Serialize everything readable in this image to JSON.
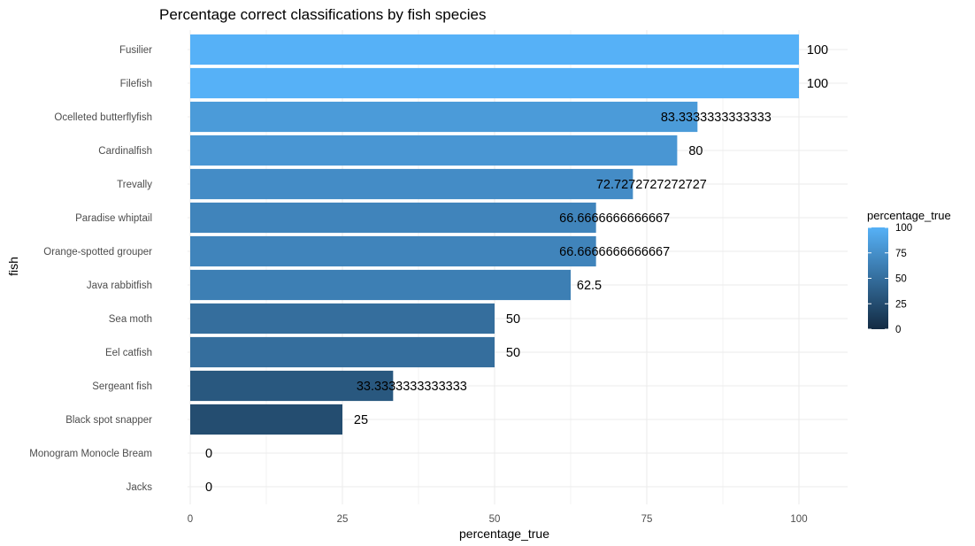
{
  "chart_data": {
    "type": "bar",
    "orientation": "horizontal",
    "title": "Percentage correct classifications by fish species",
    "xlabel": "percentage_true",
    "ylabel": "fish",
    "xlim": [
      0,
      100
    ],
    "x_ticks": [
      "0",
      "25",
      "50",
      "75",
      "100"
    ],
    "grid": true,
    "categories": [
      "Fusilier",
      "Filefish",
      "Ocelleted butterflyfish",
      "Cardinalfish",
      "Trevally",
      "Paradise whiptail",
      "Orange-spotted grouper",
      "Java rabbitfish",
      "Sea moth",
      "Eel catfish",
      "Sergeant fish",
      "Black spot snapper",
      "Monogram Monocle Bream",
      "Jacks"
    ],
    "values": [
      100,
      100,
      83.3333333333333,
      80,
      72.7272727272727,
      66.6666666666667,
      66.6666666666667,
      62.5,
      50,
      50,
      33.3333333333333,
      25,
      0,
      0
    ],
    "data_labels": [
      "100",
      "100",
      "83.3333333333333",
      "80",
      "72.7272727272727",
      "66.6666666666667",
      "66.6666666666667",
      "62.5",
      "50",
      "50",
      "33.3333333333333",
      "25",
      "0",
      "0"
    ],
    "legend": {
      "title": "percentage_true",
      "placement": "right",
      "ticks": [
        "100",
        "75",
        "50",
        "25",
        "0"
      ],
      "color_low": "#132b43",
      "color_high": "#56b1f7"
    }
  }
}
